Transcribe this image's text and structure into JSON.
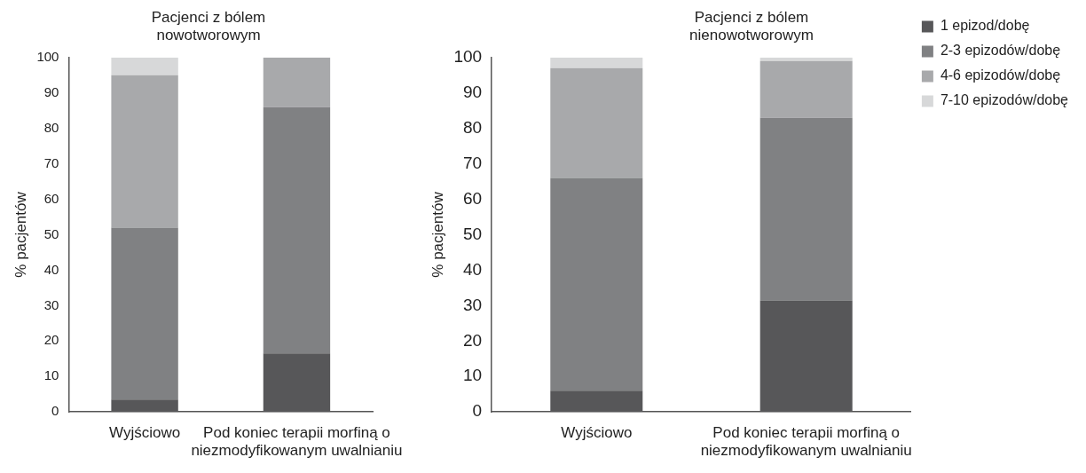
{
  "chart_data": [
    {
      "type": "bar",
      "title": "Pacjenci z bólem nowotworowym",
      "ylabel": "% pacjentów",
      "categories": [
        "Wyjściowo",
        "Pod koniec terapii morfiną o niezmodyfikowanym uwalnianiu"
      ],
      "stacked": true,
      "ylim": [
        0,
        100
      ],
      "yticks": [
        0,
        10,
        20,
        30,
        40,
        50,
        60,
        70,
        80,
        90,
        100
      ],
      "grid": false,
      "legend": false,
      "series": [
        {
          "color": "#575759",
          "values": [
            3.5,
            16.5
          ]
        },
        {
          "color": "#808183",
          "values": [
            48.5,
            69.5
          ]
        },
        {
          "color": "#a8a9ab",
          "values": [
            43,
            14
          ]
        },
        {
          "color": "#d7d8d9",
          "values": [
            5,
            0
          ]
        }
      ]
    },
    {
      "type": "bar",
      "title": "Pacjenci z bólem nienowotworowym",
      "ylabel": "% pacjentów",
      "categories": [
        "Wyjściowo",
        "Pod koniec terapii morfiną o niezmodyfikowanym uwalnianiu"
      ],
      "stacked": true,
      "ylim": [
        0,
        100
      ],
      "yticks": [
        0,
        10,
        20,
        30,
        40,
        50,
        60,
        70,
        80,
        90,
        100
      ],
      "grid": false,
      "legend": "right",
      "series": [
        {
          "name": "1 epizod/dobę",
          "color": "#575759",
          "values": [
            6,
            31.5
          ]
        },
        {
          "name": "2-3 epizodów/dobę",
          "color": "#808183",
          "values": [
            60,
            51.5
          ]
        },
        {
          "name": "4-6 epizodów/dobę",
          "color": "#a8a9ab",
          "values": [
            31,
            16
          ]
        },
        {
          "name": "7-10 epizodów/dobę",
          "color": "#d7d8d9",
          "values": [
            3,
            1
          ]
        }
      ]
    }
  ]
}
